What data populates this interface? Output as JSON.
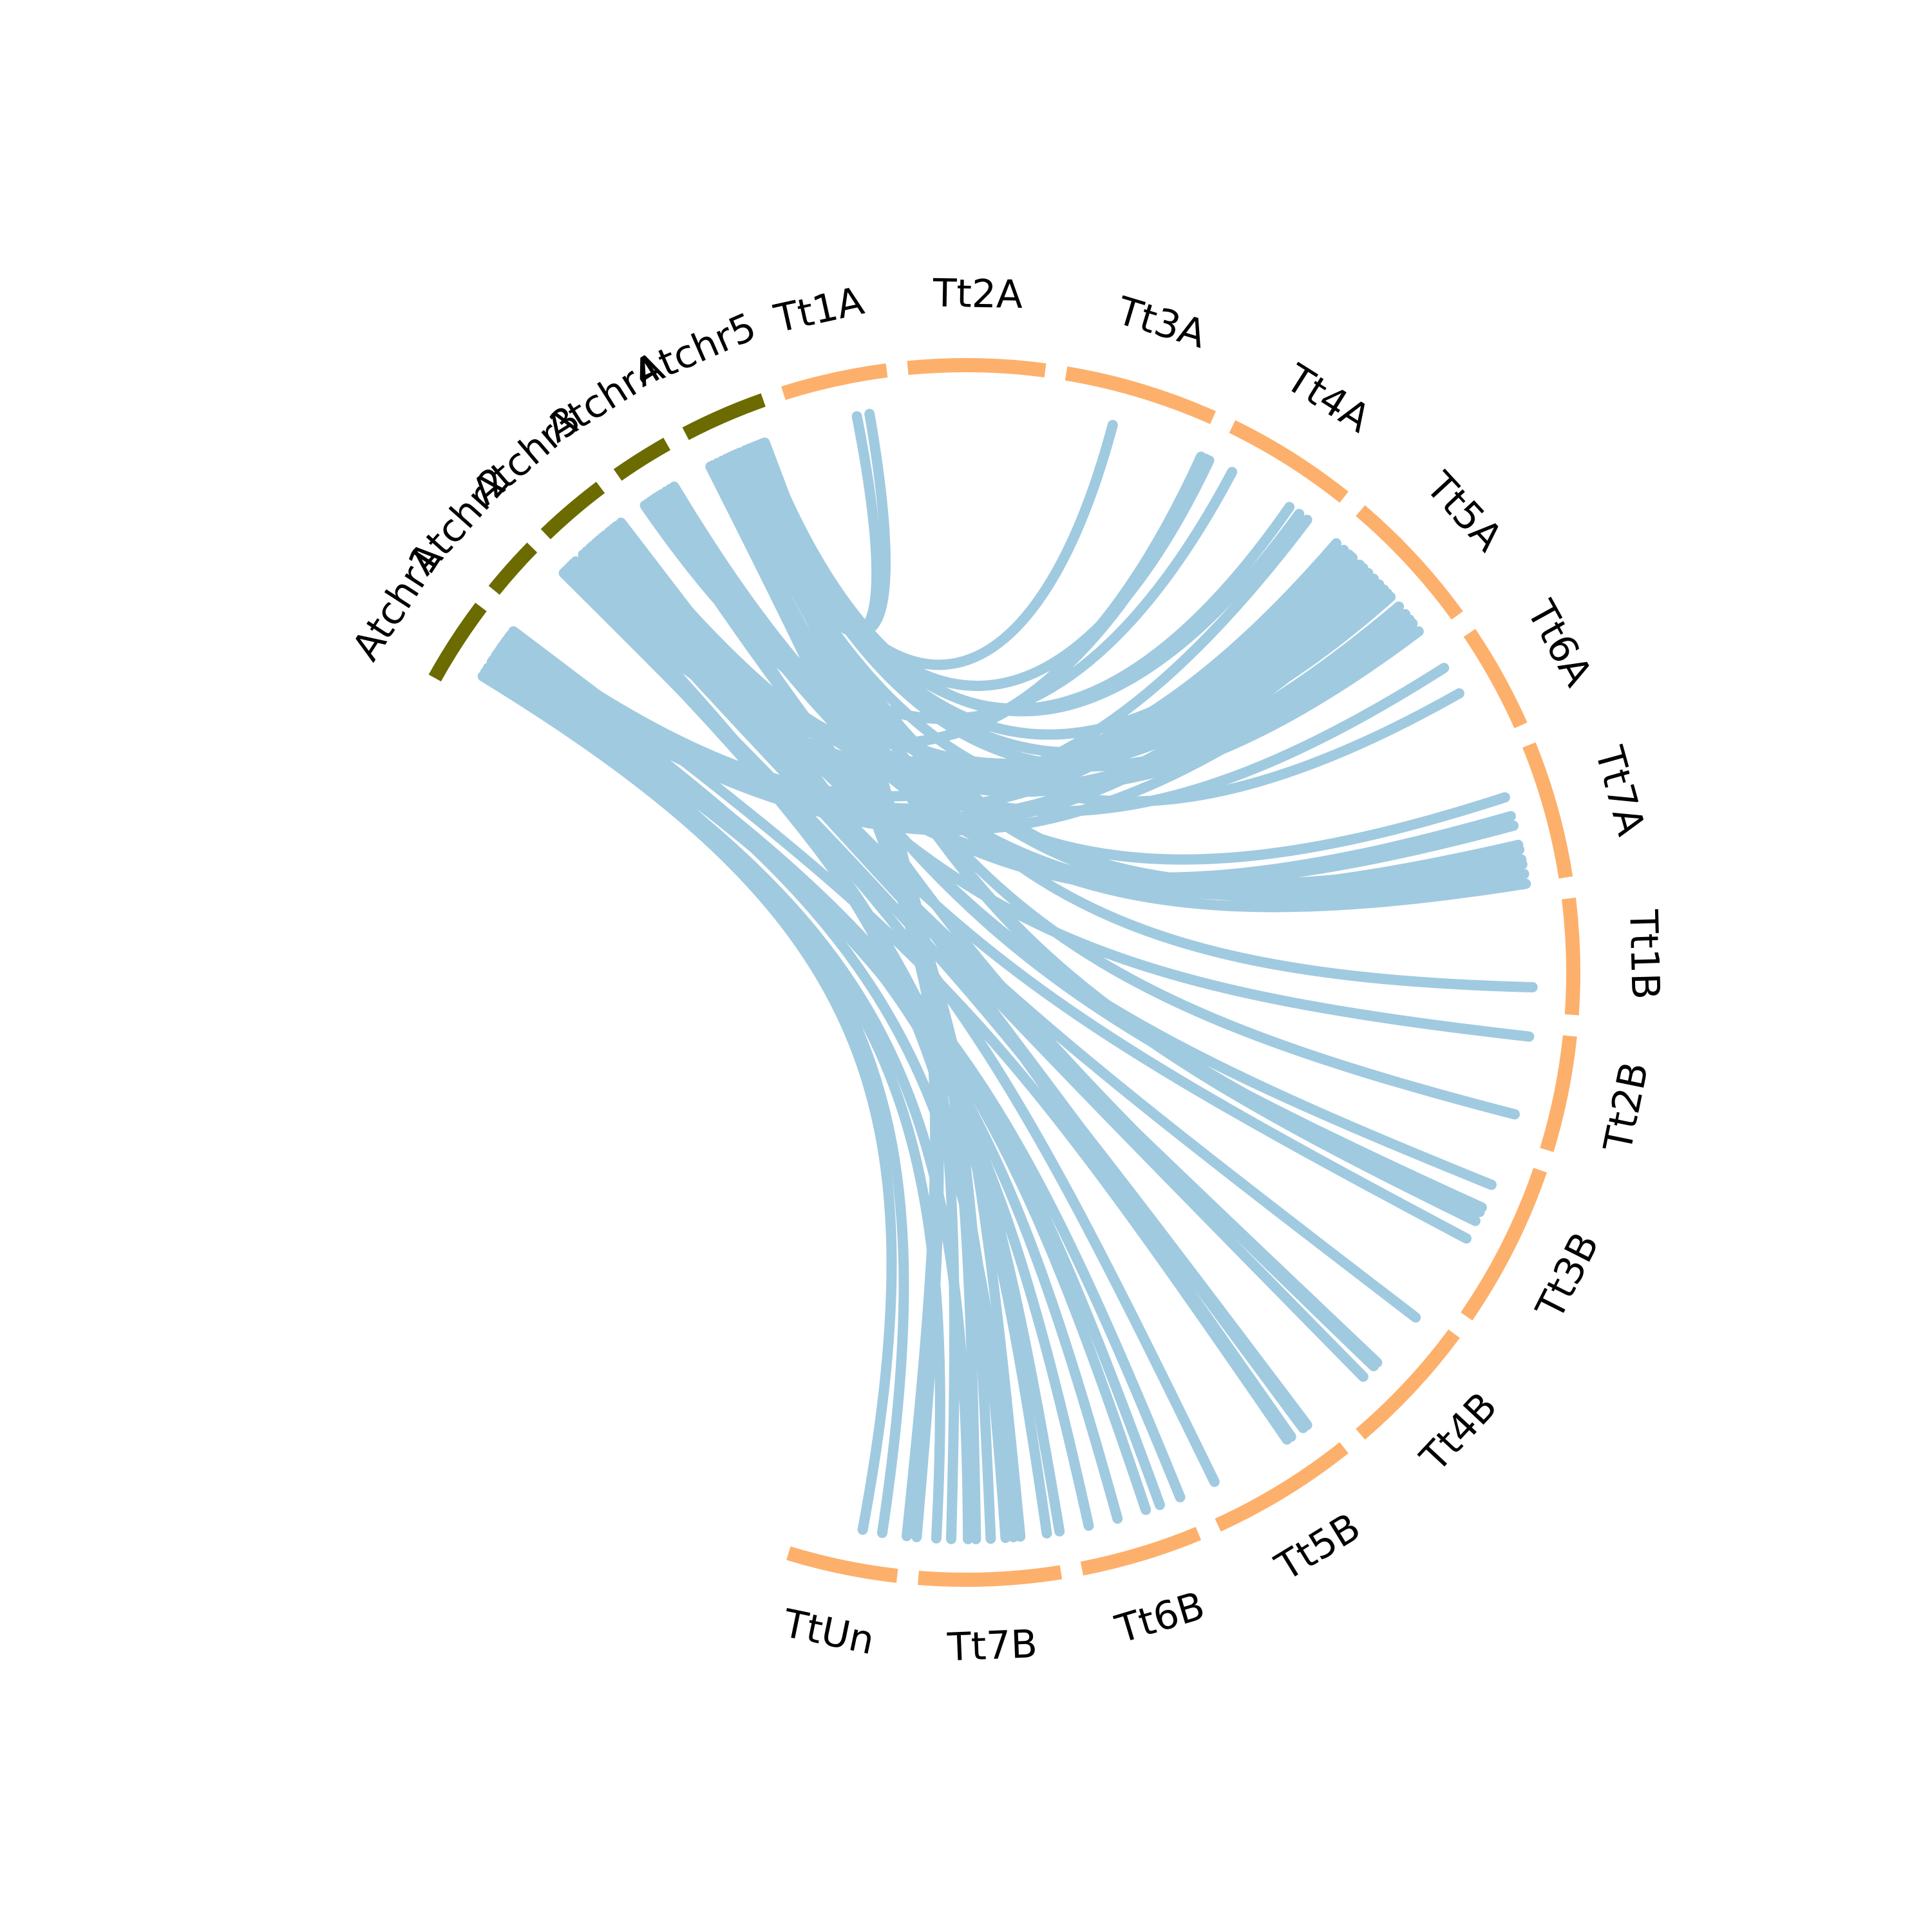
{
  "colors": {
    "atchr": "#6b6b00",
    "tt": "#fdb06b",
    "link": "#a0cae0",
    "label": "#000000"
  },
  "segments": [
    {
      "id": "Atchr1",
      "label": "Atchr1",
      "group": "atchr",
      "start": -61.0,
      "end": -53.0
    },
    {
      "id": "Atchr2",
      "label": "Atchr2",
      "group": "atchr",
      "start": -51.0,
      "end": -45.6
    },
    {
      "id": "Atchr3",
      "label": "Atchr3",
      "group": "atchr",
      "start": -43.8,
      "end": -37.0
    },
    {
      "id": "Atchr4",
      "label": "Atchr4",
      "group": "atchr",
      "start": -35.0,
      "end": -29.5
    },
    {
      "id": "Atchr5",
      "label": "Atchr5",
      "group": "atchr",
      "start": -27.5,
      "end": -19.5
    },
    {
      "id": "Tt1A",
      "label": "Tt1A",
      "group": "tt",
      "start": -17.5,
      "end": -7.5
    },
    {
      "id": "Tt2A",
      "label": "Tt2A",
      "group": "tt",
      "start": -5.5,
      "end": 7.5
    },
    {
      "id": "Tt3A",
      "label": "Tt3A",
      "group": "tt",
      "start": 9.5,
      "end": 24.0
    },
    {
      "id": "Tt4A",
      "label": "Tt4A",
      "group": "tt",
      "start": 26.0,
      "end": 38.5
    },
    {
      "id": "Tt5A",
      "label": "Tt5A",
      "group": "tt",
      "start": 40.5,
      "end": 54.0
    },
    {
      "id": "Tt6A",
      "label": "Tt6A",
      "group": "tt",
      "start": 56.0,
      "end": 66.0
    },
    {
      "id": "Tt7A",
      "label": "Tt7A",
      "group": "tt",
      "start": 68.0,
      "end": 81.0
    },
    {
      "id": "Tt1B",
      "label": "Tt1B",
      "group": "tt",
      "start": 83.0,
      "end": 94.0
    },
    {
      "id": "Tt2B",
      "label": "Tt2B",
      "group": "tt",
      "start": 96.0,
      "end": 107.0
    },
    {
      "id": "Tt3B",
      "label": "Tt3B",
      "group": "tt",
      "start": 109.0,
      "end": 124.5
    },
    {
      "id": "Tt4B",
      "label": "Tt4B",
      "group": "tt",
      "start": 126.5,
      "end": 139.5
    },
    {
      "id": "Tt5B",
      "label": "Tt5B",
      "group": "tt",
      "start": 141.5,
      "end": 155.5
    },
    {
      "id": "Tt6B",
      "label": "Tt6B",
      "group": "tt",
      "start": 157.5,
      "end": 169.0
    },
    {
      "id": "Tt7B",
      "label": "Tt7B",
      "group": "tt",
      "start": 171.0,
      "end": 184.5
    },
    {
      "id": "TtUn",
      "label": "TtUn",
      "group": "tt",
      "start": 186.5,
      "end": 197.0
    }
  ],
  "links": [
    [
      -23.6,
      -11.1
    ],
    [
      -22.7,
      -9.8
    ],
    [
      -22.9,
      15.0
    ],
    [
      -22.3,
      25.4
    ],
    [
      -21.5,
      34.8
    ],
    [
      -21.0,
      36.0
    ],
    [
      -22.0,
      43.0
    ],
    [
      -21.8,
      48.5
    ],
    [
      -22.5,
      52.0
    ],
    [
      -24.0,
      60.5
    ],
    [
      -25.0,
      77.5
    ],
    [
      -23.5,
      78.5
    ],
    [
      -24.5,
      80.0
    ],
    [
      -26.0,
      104.5
    ],
    [
      -24.8,
      91.5
    ],
    [
      -23.8,
      115.0
    ],
    [
      -24.2,
      116.0
    ],
    [
      -21.2,
      185.0
    ],
    [
      -20.8,
      186.0
    ],
    [
      -23.0,
      179.0
    ],
    [
      -26.5,
      181.5
    ],
    [
      -25.5,
      177.5
    ],
    [
      -26.8,
      174.5
    ],
    [
      -33.5,
      28.0
    ],
    [
      -34.2,
      46.0
    ],
    [
      -34.5,
      44.5
    ],
    [
      -33.0,
      47.5
    ],
    [
      -32.0,
      53.0
    ],
    [
      -31.0,
      72.0
    ],
    [
      -32.5,
      81.0
    ],
    [
      -31.5,
      79.0
    ],
    [
      -33.8,
      112.0
    ],
    [
      -33.2,
      114.5
    ],
    [
      -32.8,
      134.0
    ],
    [
      -40.0,
      41.8
    ],
    [
      -39.5,
      42.5
    ],
    [
      -40.5,
      44.0
    ],
    [
      -38.5,
      49.8
    ],
    [
      -39.0,
      50.8
    ],
    [
      -38.0,
      57.5
    ],
    [
      -40.8,
      74.0
    ],
    [
      -41.2,
      75.0
    ],
    [
      -39.8,
      77.0
    ],
    [
      -38.8,
      96.5
    ],
    [
      -42.5,
      127.5
    ],
    [
      -41.5,
      133.5
    ],
    [
      -42.0,
      135.5
    ],
    [
      -40.3,
      118.0
    ],
    [
      -37.5,
      145.0
    ],
    [
      -38.2,
      143.5
    ],
    [
      -44.5,
      24.5
    ],
    [
      -44.0,
      25.0
    ],
    [
      -43.8,
      40.8
    ],
    [
      -43.5,
      45.2
    ],
    [
      -44.8,
      143.0
    ],
    [
      -45.2,
      154.0
    ],
    [
      -44.2,
      170.5
    ],
    [
      -45.0,
      171.8
    ],
    [
      -43.9,
      176.0
    ],
    [
      -53.5,
      37.0
    ],
    [
      -54.2,
      46.8
    ],
    [
      -54.8,
      51.5
    ],
    [
      -55.5,
      48.0
    ],
    [
      -53.8,
      42.8
    ],
    [
      -56.0,
      157.8
    ],
    [
      -55.8,
      161.5
    ],
    [
      -56.5,
      164.5
    ],
    [
      -54.5,
      167.5
    ],
    [
      -55.2,
      175.2
    ],
    [
      -57.5,
      179.8
    ],
    [
      -58.0,
      183.0
    ],
    [
      -58.5,
      190.5
    ],
    [
      -56.8,
      188.5
    ],
    [
      -53.0,
      145.5
    ],
    [
      -55.0,
      160.0
    ]
  ]
}
